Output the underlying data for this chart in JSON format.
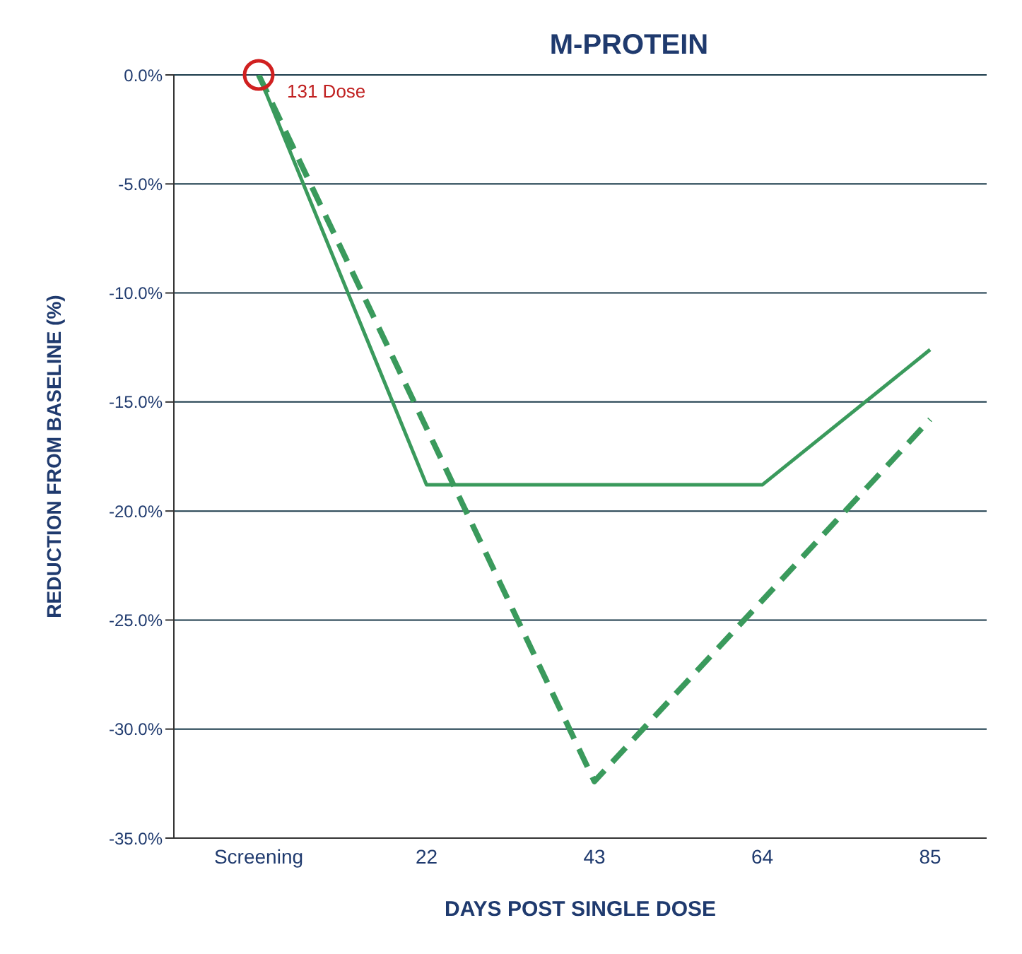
{
  "chart_data": {
    "type": "line",
    "title": "M-PROTEIN",
    "xlabel": "DAYS POST SINGLE DOSE",
    "ylabel": "REDUCTION FROM BASELINE (%)",
    "categories": [
      "Screening",
      "22",
      "43",
      "64",
      "85"
    ],
    "series": [
      {
        "color": "#3a9a5c",
        "line_style": "solid",
        "values": [
          0,
          -18.8,
          -18.8,
          -18.8,
          -12.6
        ]
      },
      {
        "color": "#3a9a5c",
        "line_style": "dashed",
        "values": [
          0,
          null,
          -32.4,
          null,
          -15.8
        ]
      }
    ],
    "ylim": [
      -35,
      0
    ],
    "yticks": [
      {
        "value": -35,
        "label": "-35.0%"
      },
      {
        "value": -30,
        "label": "-30.0%"
      },
      {
        "value": -25,
        "label": "-25.0%"
      },
      {
        "value": -20,
        "label": "-20.0%"
      },
      {
        "value": -15,
        "label": "-15.0%"
      },
      {
        "value": -10,
        "label": "-10.0%"
      },
      {
        "value": -5,
        "label": "-5.0%"
      },
      {
        "value": 0,
        "label": "0.0%"
      }
    ],
    "grid": "y",
    "annotations": [
      {
        "text": "131 Dose",
        "x": "Screening",
        "y": 0
      }
    ]
  }
}
